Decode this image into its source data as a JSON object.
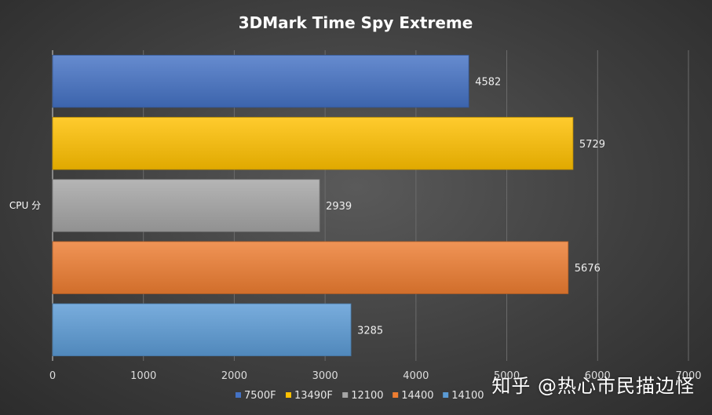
{
  "chart_data": {
    "type": "bar",
    "orientation": "horizontal",
    "title": "3DMark Time Spy Extreme",
    "categories": [
      "CPU 分"
    ],
    "series": [
      {
        "name": "7500F",
        "values": [
          4582
        ],
        "color": "#4472c4"
      },
      {
        "name": "13490F",
        "values": [
          5729
        ],
        "color": "#ffc000"
      },
      {
        "name": "12100",
        "values": [
          2939
        ],
        "color": "#a5a5a5"
      },
      {
        "name": "14400",
        "values": [
          5676
        ],
        "color": "#ed7d31"
      },
      {
        "name": "14100",
        "values": [
          3285
        ],
        "color": "#5b9bd5"
      }
    ],
    "xlim": [
      0,
      7000
    ],
    "xticks": [
      0,
      1000,
      2000,
      3000,
      4000,
      5000,
      6000,
      7000
    ],
    "xlabel": "",
    "ylabel": "",
    "grid": true,
    "legend": "bottom"
  },
  "watermark": "知乎 @热心市民描边怪"
}
